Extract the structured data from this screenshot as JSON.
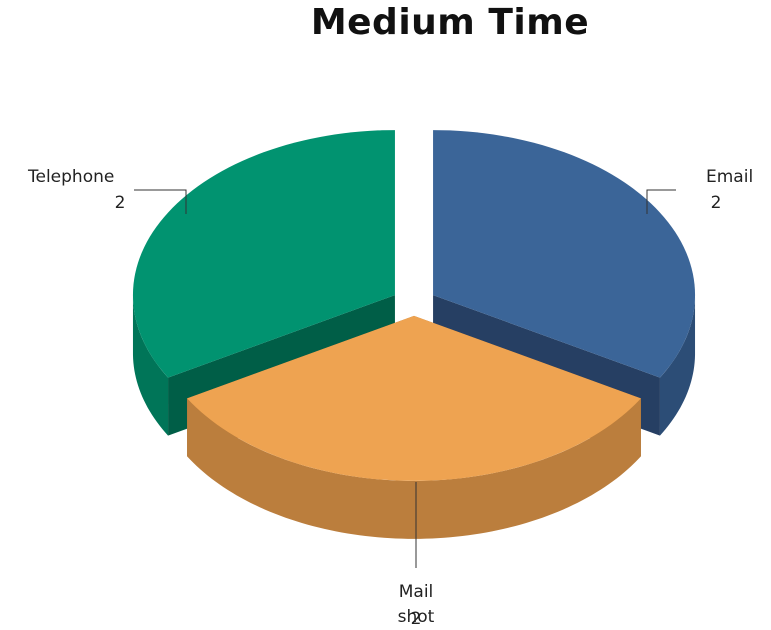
{
  "chart_data": {
    "type": "pie",
    "title": "Medium Time",
    "categories": [
      "Email",
      "Mail shot",
      "Telephone"
    ],
    "values": [
      2,
      2,
      2
    ],
    "data_labels": [
      "2",
      "2",
      "2"
    ],
    "colors": {
      "Email": {
        "top": "#3b6598",
        "side": "#2c4d76",
        "inner": "#263f63"
      },
      "Mail shot": {
        "top": "#eea351",
        "side": "#bb7e3d",
        "inner": "#a96f33"
      },
      "Telephone": {
        "top": "#019370",
        "side": "#007558",
        "inner": "#005e47"
      }
    },
    "exploded": true,
    "three_d": true,
    "legend": "none"
  }
}
